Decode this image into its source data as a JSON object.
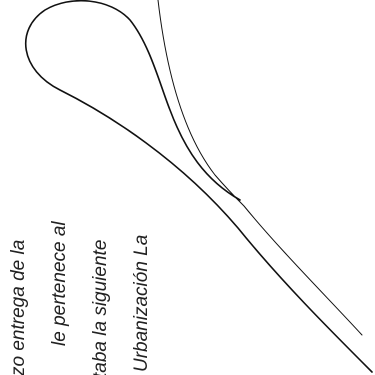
{
  "text_lines": [
    "zo entrega de la",
    "le pertenece al",
    "taba la siguiente",
    "Urbanización La"
  ]
}
